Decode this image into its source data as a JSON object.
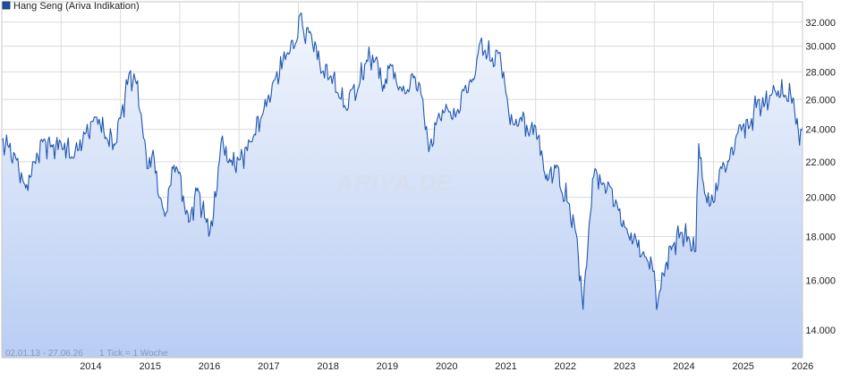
{
  "chart_data": {
    "type": "area",
    "legend": {
      "label": "Hang Seng (Ariva Indikation)",
      "color": "#1f4e9e",
      "position": "top-left"
    },
    "date_range_label": "02.01.13 - 27.06.26",
    "tick_info_label": "1 Tick = 1 Woche",
    "watermark": "ARIVA.DE",
    "x_tick_labels": [
      "2014",
      "2015",
      "2016",
      "2017",
      "2018",
      "2019",
      "2020",
      "2021",
      "2022",
      "2023",
      "2024",
      "2025",
      "2026"
    ],
    "y_tick_labels": [
      "14.000",
      "16.000",
      "18.000",
      "20.000",
      "22.000",
      "24.000",
      "26.000",
      "28.000",
      "30.000",
      "32.000"
    ],
    "y_ticks": [
      14000,
      16000,
      18000,
      20000,
      22000,
      24000,
      26000,
      28000,
      30000,
      32000
    ],
    "y_scale": "log",
    "ylim": [
      13000,
      33800
    ],
    "xlim": [
      2013.0,
      2026.5
    ],
    "grid": true,
    "line_color": "#1f56b2",
    "fill_top_color": "#f2f6fd",
    "fill_bottom_color": "#b9cdf3",
    "series": [
      {
        "x": [
          2013.0,
          2013.1,
          2013.25,
          2013.4,
          2013.55,
          2013.7,
          2013.85,
          2014.0,
          2014.2,
          2014.4,
          2014.6,
          2014.75,
          2014.9,
          2015.0,
          2015.15,
          2015.25,
          2015.35,
          2015.45,
          2015.55,
          2015.65,
          2015.75,
          2015.9,
          2016.0,
          2016.1,
          2016.15,
          2016.3,
          2016.45,
          2016.55,
          2016.7,
          2016.85,
          2017.0,
          2017.2,
          2017.4,
          2017.6,
          2017.8,
          2017.95,
          2018.05,
          2018.1,
          2018.2,
          2018.4,
          2018.55,
          2018.7,
          2018.8,
          2018.9,
          2019.0,
          2019.15,
          2019.3,
          2019.45,
          2019.55,
          2019.65,
          2019.8,
          2019.95,
          2020.1,
          2020.2,
          2020.35,
          2020.5,
          2020.65,
          2020.8,
          2020.95,
          2021.05,
          2021.15,
          2021.25,
          2021.4,
          2021.55,
          2021.65,
          2021.75,
          2021.9,
          2022.0,
          2022.15,
          2022.2,
          2022.35,
          2022.45,
          2022.55,
          2022.7,
          2022.8,
          2022.9,
          2023.0,
          2023.1,
          2023.25,
          2023.4,
          2023.55,
          2023.7,
          2023.8,
          2023.9,
          2024.0,
          2024.05,
          2024.15,
          2024.3,
          2024.45,
          2024.6,
          2024.7,
          2024.75,
          2024.85,
          2025.0,
          2025.1,
          2025.25,
          2025.45,
          2025.6,
          2025.75,
          2025.85,
          2025.95,
          2026.05,
          2026.2,
          2026.35,
          2026.45,
          2026.5
        ],
        "y": [
          23300,
          23000,
          22100,
          20500,
          22000,
          23300,
          22900,
          23100,
          22200,
          23700,
          24800,
          23500,
          23000,
          24700,
          27900,
          27400,
          25000,
          21600,
          22700,
          20000,
          19000,
          21800,
          21400,
          19100,
          18700,
          20500,
          18700,
          18500,
          23300,
          22000,
          22100,
          23200,
          25000,
          27400,
          29300,
          30200,
          32800,
          30700,
          31200,
          28000,
          27700,
          26100,
          25400,
          26700,
          26700,
          28900,
          29000,
          26800,
          28600,
          27300,
          26400,
          27700,
          26000,
          22600,
          24800,
          25500,
          24800,
          26800,
          27400,
          30100,
          29700,
          28800,
          29500,
          25000,
          24300,
          24800,
          23700,
          24200,
          21400,
          20900,
          21800,
          20200,
          19700,
          17900,
          14800,
          18500,
          21600,
          20800,
          20600,
          19300,
          18200,
          17800,
          17200,
          16800,
          16400,
          14900,
          16300,
          17500,
          18200,
          17800,
          17300,
          23100,
          20200,
          19700,
          21500,
          22000,
          24300,
          24100,
          26000,
          25500,
          26300,
          26500,
          26300,
          26000,
          23000,
          24200
        ]
      }
    ]
  }
}
